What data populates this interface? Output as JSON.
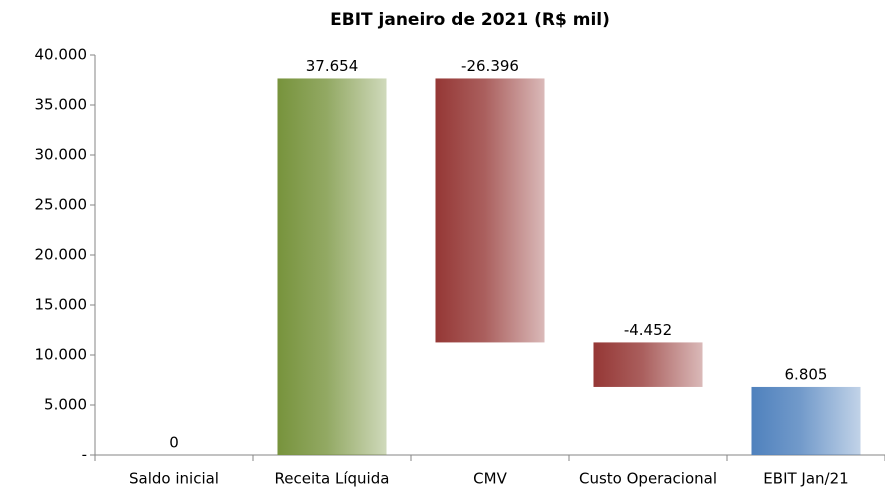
{
  "chart_data": {
    "type": "waterfall",
    "title": "EBIT janeiro de 2021 (R$ mil)",
    "categories": [
      "Saldo inicial",
      "Receita Líquida",
      "CMV",
      "Custo Operacional",
      "EBIT Jan/21"
    ],
    "values": [
      0,
      37654,
      -26396,
      -4452,
      6805
    ],
    "value_labels": [
      "0",
      "37.654",
      "-26.396",
      "-4.452",
      "6.805"
    ],
    "colors": {
      "increase": "#77933c",
      "decrease": "#953735",
      "total": "#4f81bd"
    },
    "ylim": [
      0,
      40000
    ],
    "yticks": [
      {
        "value": 0,
        "label": "-"
      },
      {
        "value": 5000,
        "label": "5.000"
      },
      {
        "value": 10000,
        "label": "10.000"
      },
      {
        "value": 15000,
        "label": "15.000"
      },
      {
        "value": 20000,
        "label": "20.000"
      },
      {
        "value": 25000,
        "label": "25.000"
      },
      {
        "value": 30000,
        "label": "30.000"
      },
      {
        "value": 35000,
        "label": "35.000"
      },
      {
        "value": 40000,
        "label": "40.000"
      }
    ],
    "grid": false
  }
}
